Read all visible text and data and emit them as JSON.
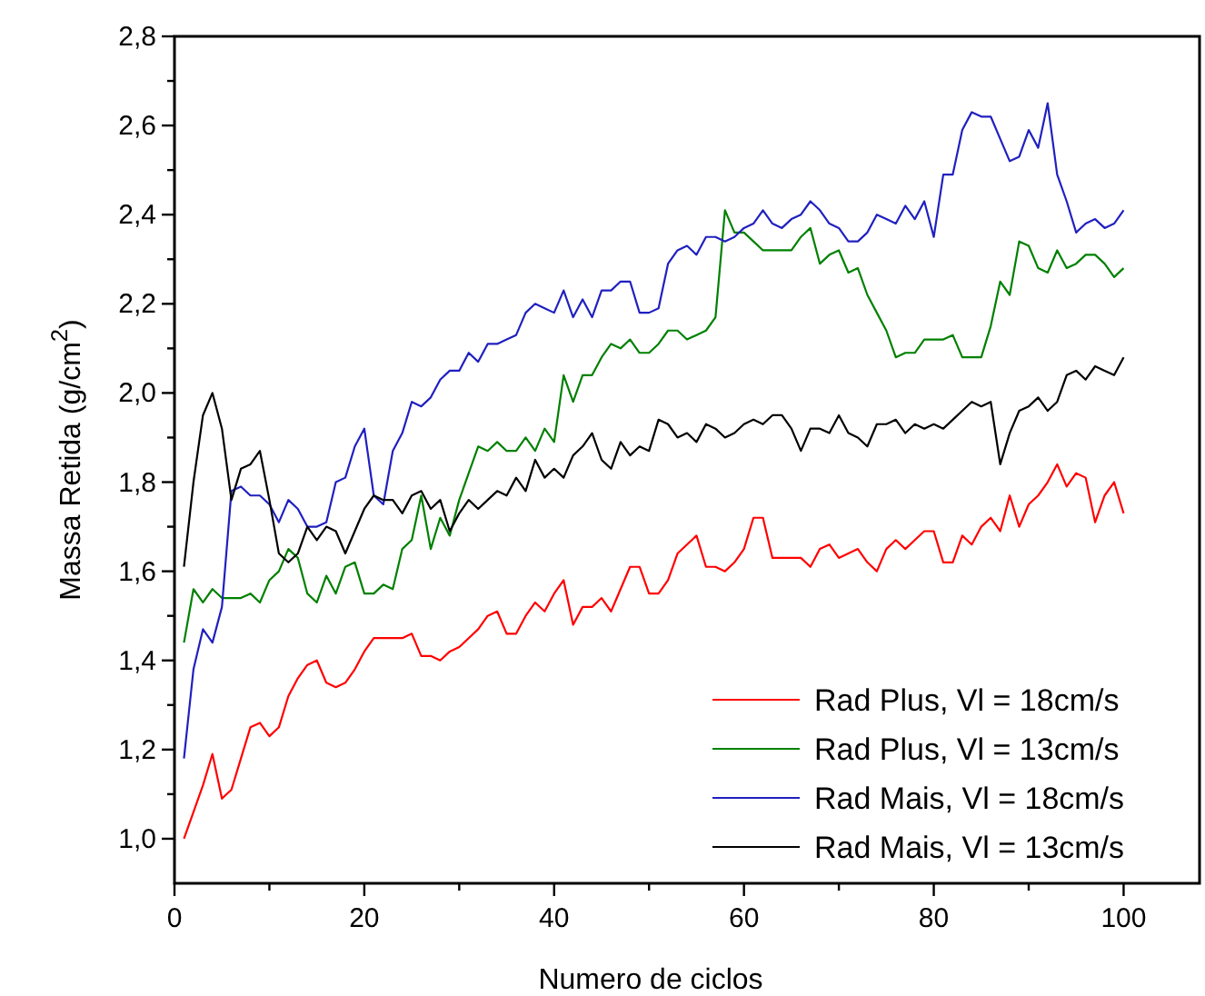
{
  "chart_data": {
    "type": "line",
    "xlabel": "Numero de ciclos",
    "ylabel": "Massa Retida (g/cm$^{2}$)",
    "x": [
      1,
      2,
      3,
      4,
      5,
      6,
      7,
      8,
      9,
      10,
      11,
      12,
      13,
      14,
      15,
      16,
      17,
      18,
      19,
      20,
      21,
      22,
      23,
      24,
      25,
      26,
      27,
      28,
      29,
      30,
      31,
      32,
      33,
      34,
      35,
      36,
      37,
      38,
      39,
      40,
      41,
      42,
      43,
      44,
      45,
      46,
      47,
      48,
      49,
      50,
      51,
      52,
      53,
      54,
      55,
      56,
      57,
      58,
      59,
      60,
      61,
      62,
      63,
      64,
      65,
      66,
      67,
      68,
      69,
      70,
      71,
      72,
      73,
      74,
      75,
      76,
      77,
      78,
      79,
      80,
      81,
      82,
      83,
      84,
      85,
      86,
      87,
      88,
      89,
      90,
      91,
      92,
      93,
      94,
      95,
      96,
      97,
      98,
      99,
      100
    ],
    "xlim": [
      0,
      108
    ],
    "xticks": [
      0,
      {
        "value": 10,
        "label": null
      },
      20,
      {
        "value": 30,
        "label": null
      },
      40,
      {
        "value": 50,
        "label": null
      },
      60,
      {
        "value": 70,
        "label": null
      },
      80,
      {
        "value": 90,
        "label": null
      },
      100
    ],
    "ylim": [
      0.9,
      2.8
    ],
    "yticks": [
      {
        "value": 1.0,
        "label": "1,0"
      },
      {
        "value": 1.1,
        "label": null
      },
      {
        "value": 1.2,
        "label": "1,2"
      },
      {
        "value": 1.3,
        "label": null
      },
      {
        "value": 1.4,
        "label": "1,4"
      },
      {
        "value": 1.5,
        "label": null
      },
      {
        "value": 1.6,
        "label": "1,6"
      },
      {
        "value": 1.7,
        "label": null
      },
      {
        "value": 1.8,
        "label": "1,8"
      },
      {
        "value": 1.9,
        "label": null
      },
      {
        "value": 2.0,
        "label": "2,0"
      },
      {
        "value": 2.1,
        "label": null
      },
      {
        "value": 2.2,
        "label": "2,2"
      },
      {
        "value": 2.3,
        "label": null
      },
      {
        "value": 2.4,
        "label": "2,4"
      },
      {
        "value": 2.5,
        "label": null
      },
      {
        "value": 2.6,
        "label": "2,6"
      },
      {
        "value": 2.7,
        "label": null
      },
      {
        "value": 2.8,
        "label": "2,8"
      }
    ],
    "grid": false,
    "legend": "bottom right",
    "marker": "none",
    "line_style": "solid",
    "series": [
      {
        "name": "Rad Plus, Vl = 18cm/s",
        "color": "#ff0000",
        "values": [
          1.0,
          1.06,
          1.12,
          1.19,
          1.09,
          1.11,
          1.18,
          1.25,
          1.26,
          1.23,
          1.25,
          1.32,
          1.36,
          1.39,
          1.4,
          1.35,
          1.34,
          1.35,
          1.38,
          1.42,
          1.45,
          1.45,
          1.45,
          1.45,
          1.46,
          1.41,
          1.41,
          1.4,
          1.42,
          1.43,
          1.45,
          1.47,
          1.5,
          1.51,
          1.46,
          1.46,
          1.5,
          1.53,
          1.51,
          1.55,
          1.58,
          1.48,
          1.52,
          1.52,
          1.54,
          1.51,
          1.56,
          1.61,
          1.61,
          1.55,
          1.55,
          1.58,
          1.64,
          1.66,
          1.68,
          1.61,
          1.61,
          1.6,
          1.62,
          1.65,
          1.72,
          1.72,
          1.63,
          1.63,
          1.63,
          1.63,
          1.61,
          1.65,
          1.66,
          1.63,
          1.64,
          1.65,
          1.62,
          1.6,
          1.65,
          1.67,
          1.65,
          1.67,
          1.69,
          1.69,
          1.62,
          1.62,
          1.68,
          1.66,
          1.7,
          1.72,
          1.69,
          1.77,
          1.7,
          1.75,
          1.77,
          1.8,
          1.84,
          1.79,
          1.82,
          1.81,
          1.71,
          1.77,
          1.8,
          1.73
        ]
      },
      {
        "name": "Rad Plus, Vl = 13cm/s",
        "color": "#008000",
        "values": [
          1.44,
          1.56,
          1.53,
          1.56,
          1.54,
          1.54,
          1.54,
          1.55,
          1.53,
          1.58,
          1.6,
          1.65,
          1.63,
          1.55,
          1.53,
          1.59,
          1.55,
          1.61,
          1.62,
          1.55,
          1.55,
          1.57,
          1.56,
          1.65,
          1.67,
          1.77,
          1.65,
          1.72,
          1.68,
          1.76,
          1.82,
          1.88,
          1.87,
          1.89,
          1.87,
          1.87,
          1.9,
          1.87,
          1.92,
          1.89,
          2.04,
          1.98,
          2.04,
          2.04,
          2.08,
          2.11,
          2.1,
          2.12,
          2.09,
          2.09,
          2.11,
          2.14,
          2.14,
          2.12,
          2.13,
          2.14,
          2.17,
          2.41,
          2.36,
          2.36,
          2.34,
          2.32,
          2.32,
          2.32,
          2.32,
          2.35,
          2.37,
          2.29,
          2.31,
          2.32,
          2.27,
          2.28,
          2.22,
          2.18,
          2.14,
          2.08,
          2.09,
          2.09,
          2.12,
          2.12,
          2.12,
          2.13,
          2.08,
          2.08,
          2.08,
          2.15,
          2.25,
          2.22,
          2.34,
          2.33,
          2.28,
          2.27,
          2.32,
          2.28,
          2.29,
          2.31,
          2.31,
          2.29,
          2.26,
          2.28
        ]
      },
      {
        "name": "Rad Mais, Vl = 18cm/s",
        "color": "#2020c0",
        "values": [
          1.18,
          1.38,
          1.47,
          1.44,
          1.52,
          1.78,
          1.79,
          1.77,
          1.77,
          1.75,
          1.71,
          1.76,
          1.74,
          1.7,
          1.7,
          1.71,
          1.8,
          1.81,
          1.88,
          1.92,
          1.77,
          1.75,
          1.87,
          1.91,
          1.98,
          1.97,
          1.99,
          2.03,
          2.05,
          2.05,
          2.09,
          2.07,
          2.11,
          2.11,
          2.12,
          2.13,
          2.18,
          2.2,
          2.19,
          2.18,
          2.23,
          2.17,
          2.21,
          2.17,
          2.23,
          2.23,
          2.25,
          2.25,
          2.18,
          2.18,
          2.19,
          2.29,
          2.32,
          2.33,
          2.31,
          2.35,
          2.35,
          2.34,
          2.35,
          2.37,
          2.38,
          2.41,
          2.38,
          2.37,
          2.39,
          2.4,
          2.43,
          2.41,
          2.38,
          2.37,
          2.34,
          2.34,
          2.36,
          2.4,
          2.39,
          2.38,
          2.42,
          2.39,
          2.43,
          2.35,
          2.49,
          2.49,
          2.59,
          2.63,
          2.62,
          2.62,
          2.57,
          2.52,
          2.53,
          2.59,
          2.55,
          2.65,
          2.49,
          2.43,
          2.36,
          2.38,
          2.39,
          2.37,
          2.38,
          2.41
        ]
      },
      {
        "name": "Rad Mais, Vl = 13cm/s",
        "color": "#000000",
        "values": [
          1.61,
          1.8,
          1.95,
          2.0,
          1.92,
          1.76,
          1.83,
          1.84,
          1.87,
          1.76,
          1.64,
          1.62,
          1.64,
          1.7,
          1.67,
          1.7,
          1.69,
          1.64,
          1.69,
          1.74,
          1.77,
          1.76,
          1.76,
          1.73,
          1.77,
          1.78,
          1.74,
          1.76,
          1.69,
          1.73,
          1.76,
          1.74,
          1.76,
          1.78,
          1.77,
          1.81,
          1.78,
          1.85,
          1.81,
          1.83,
          1.81,
          1.86,
          1.88,
          1.91,
          1.85,
          1.83,
          1.89,
          1.86,
          1.88,
          1.87,
          1.94,
          1.93,
          1.9,
          1.91,
          1.89,
          1.93,
          1.92,
          1.9,
          1.91,
          1.93,
          1.94,
          1.93,
          1.95,
          1.95,
          1.92,
          1.87,
          1.92,
          1.92,
          1.91,
          1.95,
          1.91,
          1.9,
          1.88,
          1.93,
          1.93,
          1.94,
          1.91,
          1.93,
          1.92,
          1.93,
          1.92,
          1.94,
          1.96,
          1.98,
          1.97,
          1.98,
          1.84,
          1.91,
          1.96,
          1.97,
          1.99,
          1.96,
          1.98,
          2.04,
          2.05,
          2.03,
          2.06,
          2.05,
          2.04,
          2.08
        ]
      }
    ]
  }
}
